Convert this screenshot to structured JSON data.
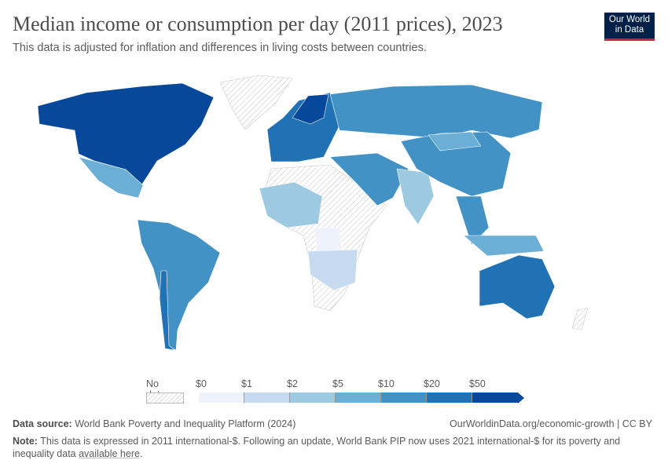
{
  "header": {
    "title": "Median income or consumption per day (2011 prices), 2023",
    "subtitle": "This data is adjusted for inflation and differences in living costs between countries.",
    "logo": "Our World in Data"
  },
  "legend": {
    "no_data_label": "No data",
    "ticks": [
      "$0",
      "$1",
      "$2",
      "$5",
      "$10",
      "$20",
      "$50"
    ],
    "colors": [
      "#eef3fb",
      "#c6dbef",
      "#9ecae1",
      "#6baed6",
      "#4292c6",
      "#2171b5",
      "#08489a"
    ]
  },
  "map": {
    "colors": {
      "no_data": "#dddddd",
      "border": "#ffffff"
    }
  },
  "footer": {
    "source_label": "Data source:",
    "source_text": "World Bank Poverty and Inequality Platform (2024)",
    "url_text": "OurWorldinData.org/economic-growth | CC BY",
    "note_label": "Note:",
    "note_text": "This data is expressed in 2011 international-$. Following an update, World Bank PIP now uses 2021 international-$ for its poverty and inequality data",
    "note_link": "available here",
    "note_end": "."
  }
}
